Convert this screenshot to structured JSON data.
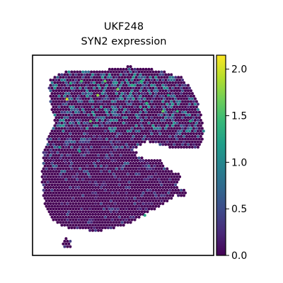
{
  "chart_data": {
    "type": "scatter",
    "subtype": "spatial-transcriptomics-spot-map",
    "title": "UKF248",
    "subtitle": "SYN2 expression",
    "xlabel": "",
    "ylabel": "",
    "axes_ticks": false,
    "grid": false,
    "colormap": "viridis",
    "colorbar": {
      "location": "right",
      "min": 0.0,
      "max": 2.15,
      "ticks": [
        0.0,
        0.5,
        1.0,
        1.5,
        2.0
      ],
      "tick_labels": [
        "0.0",
        "0.5",
        "1.0",
        "1.5",
        "2.0"
      ]
    },
    "colormap_stops": [
      "#440154",
      "#482878",
      "#3e4989",
      "#31688e",
      "#26828e",
      "#1f9e89",
      "#35b779",
      "#6ece58",
      "#b5de2b",
      "#fde725"
    ],
    "background_value": 0.0,
    "tissue_outline": [
      [
        0.1,
        0.12
      ],
      [
        0.15,
        0.09
      ],
      [
        0.22,
        0.07
      ],
      [
        0.35,
        0.08
      ],
      [
        0.5,
        0.06
      ],
      [
        0.62,
        0.06
      ],
      [
        0.72,
        0.08
      ],
      [
        0.82,
        0.11
      ],
      [
        0.88,
        0.17
      ],
      [
        0.93,
        0.28
      ],
      [
        0.95,
        0.38
      ],
      [
        0.92,
        0.47
      ],
      [
        0.82,
        0.47
      ],
      [
        0.7,
        0.46
      ],
      [
        0.58,
        0.47
      ],
      [
        0.57,
        0.51
      ],
      [
        0.7,
        0.52
      ],
      [
        0.74,
        0.56
      ],
      [
        0.82,
        0.6
      ],
      [
        0.8,
        0.66
      ],
      [
        0.77,
        0.72
      ],
      [
        0.7,
        0.76
      ],
      [
        0.62,
        0.79
      ],
      [
        0.55,
        0.84
      ],
      [
        0.46,
        0.86
      ],
      [
        0.36,
        0.88
      ],
      [
        0.26,
        0.87
      ],
      [
        0.17,
        0.86
      ],
      [
        0.1,
        0.82
      ],
      [
        0.06,
        0.72
      ],
      [
        0.05,
        0.6
      ],
      [
        0.06,
        0.48
      ],
      [
        0.09,
        0.4
      ],
      [
        0.12,
        0.33
      ],
      [
        0.1,
        0.25
      ],
      [
        0.09,
        0.17
      ]
    ],
    "tissue_holes": [
      [
        [
          0.56,
          0.47
        ],
        [
          0.63,
          0.43
        ],
        [
          0.72,
          0.45
        ],
        [
          0.78,
          0.47
        ],
        [
          0.72,
          0.51
        ],
        [
          0.63,
          0.52
        ]
      ]
    ],
    "islands": [
      {
        "x": 0.19,
        "y": 0.94,
        "r": 0.025
      },
      {
        "x": 0.53,
        "y": 0.07,
        "r": 0.018
      },
      {
        "x": 0.82,
        "y": 0.69,
        "r": 0.025
      }
    ],
    "spot_spacing": 0.0155,
    "spot_radius": 0.0078,
    "bright_spots": [
      {
        "x": 0.19,
        "y": 0.22,
        "value": 2.0
      },
      {
        "x": 0.36,
        "y": 0.2,
        "value": 1.8
      },
      {
        "x": 0.27,
        "y": 0.13,
        "value": 1.5
      },
      {
        "x": 0.4,
        "y": 0.13,
        "value": 1.6
      },
      {
        "x": 0.47,
        "y": 0.17,
        "value": 1.7
      },
      {
        "x": 0.55,
        "y": 0.15,
        "value": 1.3
      },
      {
        "x": 0.63,
        "y": 0.24,
        "value": 1.4
      },
      {
        "x": 0.72,
        "y": 0.28,
        "value": 1.6
      },
      {
        "x": 0.8,
        "y": 0.28,
        "value": 1.4
      },
      {
        "x": 0.87,
        "y": 0.33,
        "value": 1.3
      },
      {
        "x": 0.32,
        "y": 0.33,
        "value": 1.6
      },
      {
        "x": 0.26,
        "y": 0.48,
        "value": 1.2
      },
      {
        "x": 0.62,
        "y": 0.8,
        "value": 1.3
      },
      {
        "x": 0.21,
        "y": 0.14,
        "value": 1.3
      },
      {
        "x": 0.6,
        "y": 0.13,
        "value": 1.4
      },
      {
        "x": 0.75,
        "y": 0.2,
        "value": 1.2
      },
      {
        "x": 0.15,
        "y": 0.46,
        "value": 1.1
      }
    ],
    "density_by_row": [
      {
        "y_from": 0.0,
        "y_to": 0.38,
        "mean": 0.55,
        "high_fraction": 0.35
      },
      {
        "y_from": 0.38,
        "y_to": 0.6,
        "mean": 0.35,
        "high_fraction": 0.22
      },
      {
        "y_from": 0.6,
        "y_to": 1.0,
        "mean": 0.25,
        "high_fraction": 0.15
      }
    ]
  }
}
